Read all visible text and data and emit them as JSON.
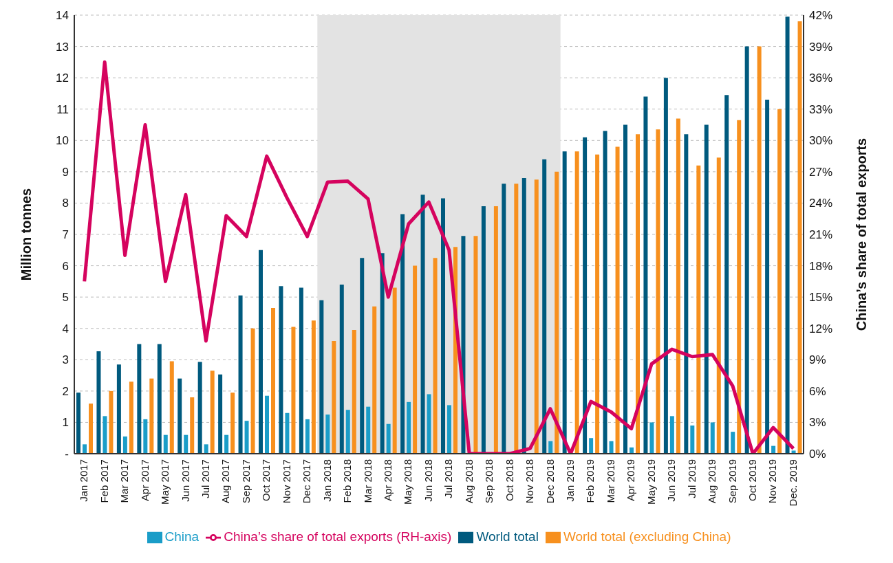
{
  "chart_data": {
    "type": "bar",
    "ylabel": "Million tonnes",
    "y2label": "China’s share of total exports",
    "categories": [
      "Jan 2017",
      "Feb 2017",
      "Mar 2017",
      "Apr 2017",
      "May 2017",
      "Jun 2017",
      "Jul 2017",
      "Aug 2017",
      "Sep 2017",
      "Oct 2017",
      "Nov 2017",
      "Dec 2017",
      "Jan 2018",
      "Feb 2018",
      "Mar 2018",
      "Apr 2018",
      "May 2018",
      "Jun 2018",
      "Jul 2018",
      "Aug 2018",
      "Sep 2018",
      "Oct 2018",
      "Nov 2018",
      "Dec 2018",
      "Jan 2019",
      "Feb 2019",
      "Mar 2019",
      "Apr 2019",
      "May 2019",
      "Jun 2019",
      "Jul 2019",
      "Aug 2019",
      "Sep 2019",
      "Oct 2019",
      "Nov 2019",
      "Dec. 2019"
    ],
    "series": [
      {
        "name": "World total",
        "color": "#005a7e",
        "values": [
          1.95,
          3.27,
          2.85,
          3.5,
          3.5,
          2.4,
          2.93,
          2.53,
          5.05,
          6.5,
          5.35,
          5.3,
          4.9,
          5.4,
          6.25,
          6.4,
          7.65,
          8.27,
          8.15,
          6.95,
          7.9,
          8.62,
          8.8,
          9.4,
          9.65,
          10.1,
          10.3,
          10.5,
          11.4,
          12.0,
          10.2,
          10.5,
          11.45,
          13.0,
          11.3,
          13.95
        ]
      },
      {
        "name": "China",
        "color": "#1a9dc8",
        "values": [
          0.3,
          1.2,
          0.55,
          1.1,
          0.6,
          0.6,
          0.3,
          0.6,
          1.05,
          1.85,
          1.3,
          1.1,
          1.25,
          1.4,
          1.5,
          0.95,
          1.65,
          1.9,
          1.55,
          0,
          0,
          0,
          0,
          0.4,
          0,
          0.5,
          0.4,
          0.2,
          1.0,
          1.2,
          0.9,
          1.0,
          0.7,
          0,
          0.25,
          0.1
        ]
      },
      {
        "name": "World total (excluding China)",
        "color": "#f7901e",
        "values": [
          1.6,
          2.0,
          2.3,
          2.4,
          2.95,
          1.8,
          2.65,
          1.95,
          4.0,
          4.65,
          4.05,
          4.25,
          3.6,
          3.95,
          4.7,
          5.3,
          6.0,
          6.25,
          6.6,
          6.95,
          7.9,
          8.62,
          8.75,
          9.0,
          9.65,
          9.55,
          9.8,
          10.2,
          10.35,
          10.7,
          9.2,
          9.45,
          10.65,
          13.0,
          11.0,
          13.8
        ]
      },
      {
        "name": "China’s share of total exports (RH-axis)",
        "type": "line",
        "axis": "y2",
        "color": "#d5035e",
        "values": [
          16.5,
          37.5,
          19,
          31.5,
          16.5,
          24.8,
          10.8,
          22.8,
          20.8,
          28.5,
          24.5,
          20.8,
          26,
          26.1,
          24.4,
          15,
          22,
          24.1,
          19.5,
          0,
          0,
          0,
          0.5,
          4.3,
          0,
          5,
          4,
          2.4,
          8.6,
          10,
          9.3,
          9.5,
          6.5,
          0,
          2.5,
          0.5
        ]
      }
    ],
    "ylim": [
      0,
      14
    ],
    "yticks": [
      {
        "value": 0,
        "label": "-"
      },
      1,
      2,
      3,
      4,
      5,
      6,
      7,
      8,
      9,
      10,
      11,
      12,
      13,
      14
    ],
    "y2lim": [
      0,
      42
    ],
    "y2ticks": [
      {
        "value": 0,
        "label": "0%"
      },
      {
        "value": 3,
        "label": "3%"
      },
      {
        "value": 6,
        "label": "6%"
      },
      {
        "value": 9,
        "label": "9%"
      },
      {
        "value": 12,
        "label": "12%"
      },
      {
        "value": 15,
        "label": "15%"
      },
      {
        "value": 18,
        "label": "18%"
      },
      {
        "value": 21,
        "label": "21%"
      },
      {
        "value": 24,
        "label": "24%"
      },
      {
        "value": 27,
        "label": "27%"
      },
      {
        "value": 30,
        "label": "30%"
      },
      {
        "value": 33,
        "label": "33%"
      },
      {
        "value": 36,
        "label": "36%"
      },
      {
        "value": 39,
        "label": "39%"
      },
      {
        "value": 42,
        "label": "42%"
      }
    ],
    "bands": [
      {
        "axis": "x",
        "from": "Jan 2018",
        "to": "Dec 2018",
        "color": "#e3e3e3"
      }
    ],
    "grid": "y",
    "legend": "bottom",
    "marker": "none",
    "line_style": "solid"
  }
}
